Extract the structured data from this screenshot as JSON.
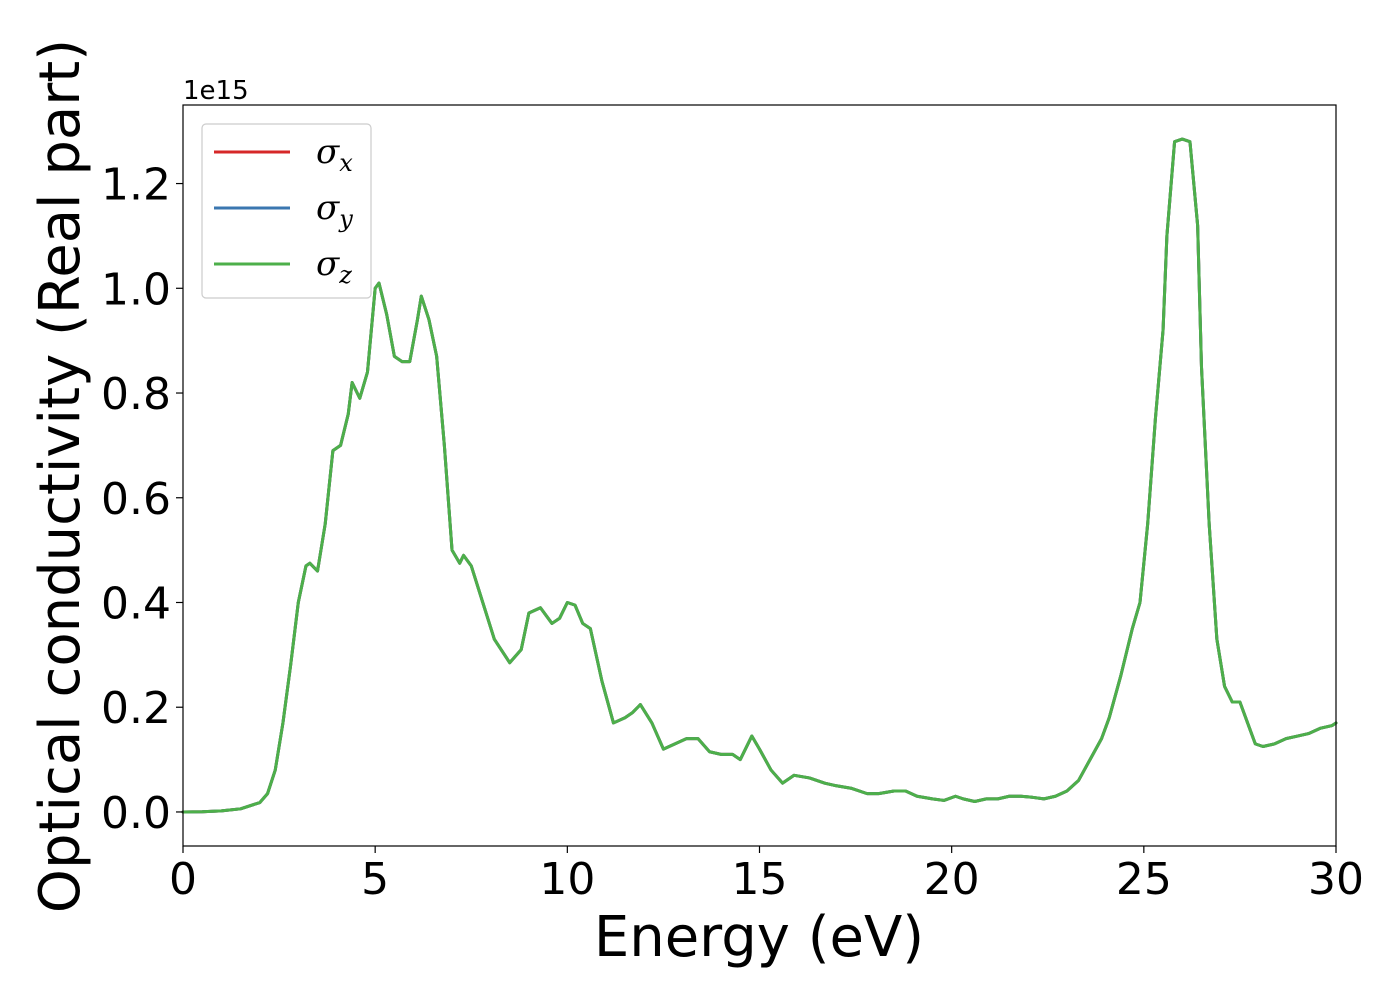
{
  "chart_data": {
    "type": "line",
    "xlabel": "Energy (eV)",
    "ylabel": "Optical conductivity (Real part)",
    "y_offset_label": "1e15",
    "xlim": [
      0,
      30
    ],
    "ylim": [
      -0.065,
      1.35
    ],
    "x_ticks": [
      0,
      5,
      10,
      15,
      20,
      25,
      30
    ],
    "x_tick_labels": [
      "0",
      "5",
      "10",
      "15",
      "20",
      "25",
      "30"
    ],
    "y_ticks": [
      0.0,
      0.2,
      0.4,
      0.6,
      0.8,
      1.0,
      1.2
    ],
    "y_tick_labels": [
      "0.0",
      "0.2",
      "0.4",
      "0.6",
      "0.8",
      "1.0",
      "1.2"
    ],
    "grid": false,
    "legend_position": "top-left",
    "x": [
      0,
      0.5,
      1.0,
      1.5,
      2.0,
      2.2,
      2.4,
      2.6,
      2.8,
      3.0,
      3.2,
      3.3,
      3.5,
      3.7,
      3.9,
      4.1,
      4.3,
      4.4,
      4.6,
      4.8,
      5.0,
      5.1,
      5.3,
      5.5,
      5.7,
      5.9,
      6.1,
      6.2,
      6.4,
      6.6,
      6.8,
      7.0,
      7.2,
      7.3,
      7.5,
      7.8,
      8.1,
      8.5,
      8.8,
      9.0,
      9.3,
      9.6,
      9.8,
      10.0,
      10.2,
      10.4,
      10.6,
      10.9,
      11.2,
      11.5,
      11.7,
      11.9,
      12.2,
      12.5,
      12.8,
      13.1,
      13.4,
      13.7,
      14.0,
      14.3,
      14.5,
      14.8,
      15.0,
      15.3,
      15.6,
      15.9,
      16.3,
      16.7,
      17.0,
      17.4,
      17.8,
      18.1,
      18.5,
      18.8,
      19.1,
      19.5,
      19.8,
      20.1,
      20.3,
      20.6,
      20.9,
      21.2,
      21.5,
      21.8,
      22.1,
      22.4,
      22.7,
      23.0,
      23.3,
      23.6,
      23.9,
      24.1,
      24.4,
      24.7,
      24.9,
      25.1,
      25.3,
      25.5,
      25.6,
      25.8,
      26.0,
      26.2,
      26.4,
      26.5,
      26.7,
      26.9,
      27.1,
      27.3,
      27.5,
      27.7,
      27.9,
      28.1,
      28.4,
      28.7,
      29.0,
      29.3,
      29.6,
      29.9,
      30.0
    ],
    "series": [
      {
        "name": "σx",
        "color": "#d62728",
        "values": [
          0.0,
          0.0005,
          0.002,
          0.006,
          0.018,
          0.035,
          0.08,
          0.17,
          0.28,
          0.4,
          0.47,
          0.475,
          0.46,
          0.55,
          0.69,
          0.7,
          0.76,
          0.82,
          0.79,
          0.84,
          1.0,
          1.01,
          0.95,
          0.87,
          0.86,
          0.86,
          0.94,
          0.985,
          0.94,
          0.87,
          0.7,
          0.5,
          0.475,
          0.49,
          0.47,
          0.4,
          0.33,
          0.285,
          0.31,
          0.38,
          0.39,
          0.36,
          0.37,
          0.4,
          0.395,
          0.36,
          0.35,
          0.25,
          0.17,
          0.18,
          0.19,
          0.205,
          0.17,
          0.12,
          0.13,
          0.14,
          0.14,
          0.115,
          0.11,
          0.11,
          0.1,
          0.145,
          0.12,
          0.08,
          0.055,
          0.07,
          0.065,
          0.055,
          0.05,
          0.045,
          0.035,
          0.035,
          0.04,
          0.04,
          0.03,
          0.025,
          0.022,
          0.03,
          0.025,
          0.02,
          0.025,
          0.025,
          0.03,
          0.03,
          0.028,
          0.025,
          0.03,
          0.04,
          0.06,
          0.1,
          0.14,
          0.18,
          0.26,
          0.35,
          0.4,
          0.55,
          0.75,
          0.92,
          1.1,
          1.28,
          1.285,
          1.28,
          1.12,
          0.85,
          0.55,
          0.33,
          0.24,
          0.21,
          0.21,
          0.17,
          0.13,
          0.125,
          0.13,
          0.14,
          0.145,
          0.15,
          0.16,
          0.165,
          0.17
        ]
      },
      {
        "name": "σy",
        "color": "#3b77b0",
        "values": [
          0.0,
          0.0005,
          0.002,
          0.006,
          0.018,
          0.035,
          0.08,
          0.17,
          0.28,
          0.4,
          0.47,
          0.475,
          0.46,
          0.55,
          0.69,
          0.7,
          0.76,
          0.82,
          0.79,
          0.84,
          1.0,
          1.01,
          0.95,
          0.87,
          0.86,
          0.86,
          0.94,
          0.985,
          0.94,
          0.87,
          0.7,
          0.5,
          0.475,
          0.49,
          0.47,
          0.4,
          0.33,
          0.285,
          0.31,
          0.38,
          0.39,
          0.36,
          0.37,
          0.4,
          0.395,
          0.36,
          0.35,
          0.25,
          0.17,
          0.18,
          0.19,
          0.205,
          0.17,
          0.12,
          0.13,
          0.14,
          0.14,
          0.115,
          0.11,
          0.11,
          0.1,
          0.145,
          0.12,
          0.08,
          0.055,
          0.07,
          0.065,
          0.055,
          0.05,
          0.045,
          0.035,
          0.035,
          0.04,
          0.04,
          0.03,
          0.025,
          0.022,
          0.03,
          0.025,
          0.02,
          0.025,
          0.025,
          0.03,
          0.03,
          0.028,
          0.025,
          0.03,
          0.04,
          0.06,
          0.1,
          0.14,
          0.18,
          0.26,
          0.35,
          0.4,
          0.55,
          0.75,
          0.92,
          1.1,
          1.28,
          1.285,
          1.28,
          1.12,
          0.85,
          0.55,
          0.33,
          0.24,
          0.21,
          0.21,
          0.17,
          0.13,
          0.125,
          0.13,
          0.14,
          0.145,
          0.15,
          0.16,
          0.165,
          0.17
        ]
      },
      {
        "name": "σz",
        "color": "#4daf4a",
        "values": [
          0.0,
          0.0005,
          0.002,
          0.006,
          0.018,
          0.035,
          0.08,
          0.17,
          0.28,
          0.4,
          0.47,
          0.475,
          0.46,
          0.55,
          0.69,
          0.7,
          0.76,
          0.82,
          0.79,
          0.84,
          1.0,
          1.01,
          0.95,
          0.87,
          0.86,
          0.86,
          0.94,
          0.985,
          0.94,
          0.87,
          0.7,
          0.5,
          0.475,
          0.49,
          0.47,
          0.4,
          0.33,
          0.285,
          0.31,
          0.38,
          0.39,
          0.36,
          0.37,
          0.4,
          0.395,
          0.36,
          0.35,
          0.25,
          0.17,
          0.18,
          0.19,
          0.205,
          0.17,
          0.12,
          0.13,
          0.14,
          0.14,
          0.115,
          0.11,
          0.11,
          0.1,
          0.145,
          0.12,
          0.08,
          0.055,
          0.07,
          0.065,
          0.055,
          0.05,
          0.045,
          0.035,
          0.035,
          0.04,
          0.04,
          0.03,
          0.025,
          0.022,
          0.03,
          0.025,
          0.02,
          0.025,
          0.025,
          0.03,
          0.03,
          0.028,
          0.025,
          0.03,
          0.04,
          0.06,
          0.1,
          0.14,
          0.18,
          0.26,
          0.35,
          0.4,
          0.55,
          0.75,
          0.92,
          1.1,
          1.28,
          1.285,
          1.28,
          1.12,
          0.85,
          0.55,
          0.33,
          0.24,
          0.21,
          0.21,
          0.17,
          0.13,
          0.125,
          0.13,
          0.14,
          0.145,
          0.15,
          0.16,
          0.165,
          0.17
        ]
      }
    ],
    "legend": [
      {
        "base": "σ",
        "sub": "x",
        "color": "#d62728"
      },
      {
        "base": "σ",
        "sub": "y",
        "color": "#3b77b0"
      },
      {
        "base": "σ",
        "sub": "z",
        "color": "#4daf4a"
      }
    ]
  }
}
